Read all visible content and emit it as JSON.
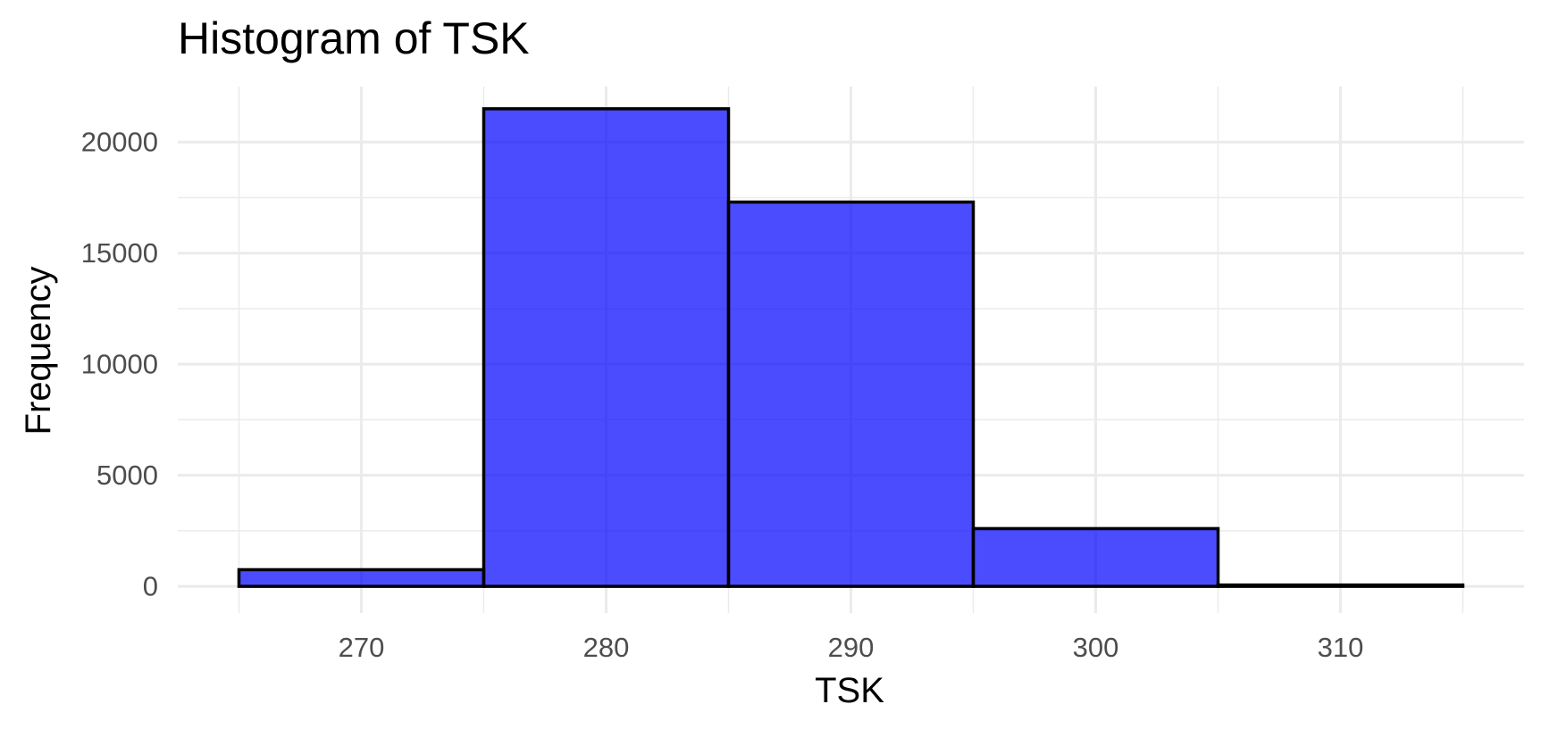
{
  "chart_data": {
    "type": "bar",
    "title": "Histogram of TSK",
    "xlabel": "TSK",
    "ylabel": "Frequency",
    "bins": [
      {
        "start": 265,
        "end": 275,
        "count": 750
      },
      {
        "start": 275,
        "end": 285,
        "count": 21500
      },
      {
        "start": 285,
        "end": 295,
        "count": 17300
      },
      {
        "start": 295,
        "end": 305,
        "count": 2600
      },
      {
        "start": 305,
        "end": 315,
        "count": 60
      }
    ],
    "xlim": [
      262.5,
      317.5
    ],
    "ylim": [
      -1200,
      22500
    ],
    "x_ticks": [
      270,
      280,
      290,
      300,
      310
    ],
    "x_tick_labels": [
      "270",
      "280",
      "290",
      "300",
      "310"
    ],
    "y_ticks": [
      0,
      5000,
      10000,
      15000,
      20000
    ],
    "y_tick_labels": [
      "0",
      "5000",
      "10000",
      "15000",
      "20000"
    ],
    "grid": true,
    "colors": {
      "fill": "#0000FF",
      "fill_opacity": 0.7,
      "outline": "#000000",
      "grid": "#EBEBEB"
    }
  }
}
